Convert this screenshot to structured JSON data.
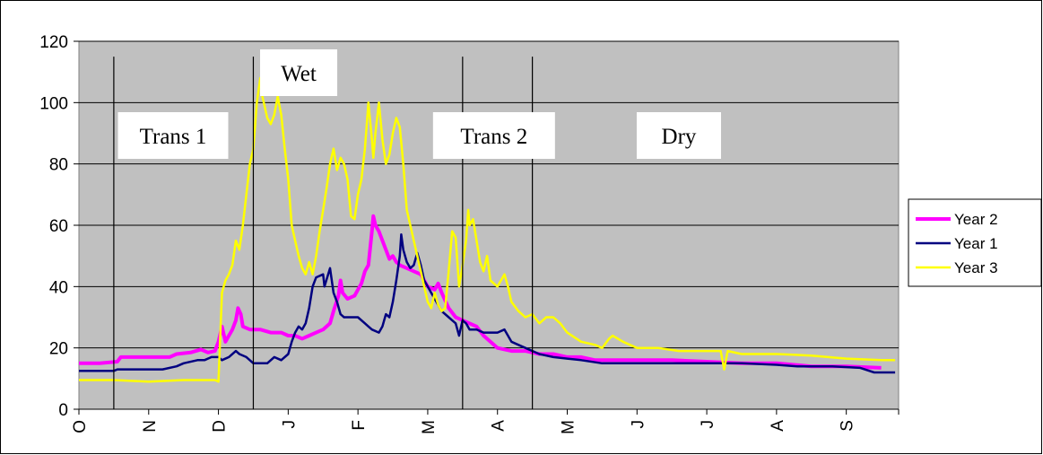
{
  "chart_data": {
    "type": "line",
    "title": "",
    "xlabel": "",
    "ylabel": "",
    "ylim": [
      0,
      120
    ],
    "yticks": [
      0,
      20,
      40,
      60,
      80,
      100,
      120
    ],
    "months": [
      "O",
      "N",
      "D",
      "J",
      "F",
      "M",
      "A",
      "M",
      "J",
      "J",
      "A",
      "S"
    ],
    "grid": "horizontal",
    "plot_background": "#c0c0c0",
    "legend_position": "right",
    "period_markers": [
      0.5,
      2.5,
      5.5,
      6.5
    ],
    "periods": [
      {
        "label": "Trans 1",
        "x": 1.35
      },
      {
        "label": "Wet",
        "x": 3.15
      },
      {
        "label": "Trans 2",
        "x": 5.95
      },
      {
        "label": "Dry",
        "x": 8.6
      }
    ],
    "series": [
      {
        "name": "Year 2",
        "color": "#ff00ff",
        "width": 4,
        "points": [
          [
            0,
            15
          ],
          [
            0.3,
            15
          ],
          [
            0.55,
            15.5
          ],
          [
            0.6,
            17
          ],
          [
            1.0,
            17
          ],
          [
            1.3,
            17
          ],
          [
            1.4,
            18
          ],
          [
            1.6,
            18.5
          ],
          [
            1.75,
            19.5
          ],
          [
            1.85,
            18.5
          ],
          [
            1.95,
            19
          ],
          [
            2.0,
            22
          ],
          [
            2.05,
            27
          ],
          [
            2.1,
            22
          ],
          [
            2.15,
            24
          ],
          [
            2.2,
            26
          ],
          [
            2.25,
            29
          ],
          [
            2.28,
            33
          ],
          [
            2.32,
            31
          ],
          [
            2.35,
            27
          ],
          [
            2.45,
            26
          ],
          [
            2.6,
            26
          ],
          [
            2.75,
            25
          ],
          [
            2.9,
            25
          ],
          [
            3.0,
            24
          ],
          [
            3.1,
            24
          ],
          [
            3.2,
            23
          ],
          [
            3.3,
            24
          ],
          [
            3.4,
            25
          ],
          [
            3.5,
            26
          ],
          [
            3.6,
            28
          ],
          [
            3.65,
            32
          ],
          [
            3.72,
            37
          ],
          [
            3.75,
            42
          ],
          [
            3.78,
            38
          ],
          [
            3.85,
            36
          ],
          [
            3.95,
            37
          ],
          [
            4.0,
            39
          ],
          [
            4.05,
            41
          ],
          [
            4.1,
            45
          ],
          [
            4.15,
            47
          ],
          [
            4.2,
            58
          ],
          [
            4.22,
            63
          ],
          [
            4.25,
            60
          ],
          [
            4.3,
            58
          ],
          [
            4.35,
            55
          ],
          [
            4.4,
            52
          ],
          [
            4.45,
            49
          ],
          [
            4.5,
            50
          ],
          [
            4.55,
            48
          ],
          [
            4.6,
            47
          ],
          [
            4.7,
            46
          ],
          [
            4.8,
            45
          ],
          [
            4.9,
            44
          ],
          [
            5.0,
            40
          ],
          [
            5.1,
            39
          ],
          [
            5.15,
            41
          ],
          [
            5.2,
            38
          ],
          [
            5.3,
            33
          ],
          [
            5.4,
            30
          ],
          [
            5.5,
            29
          ],
          [
            5.7,
            27
          ],
          [
            5.8,
            24
          ],
          [
            6.0,
            20
          ],
          [
            6.2,
            19
          ],
          [
            6.4,
            19
          ],
          [
            6.6,
            18
          ],
          [
            6.8,
            18
          ],
          [
            7.0,
            17
          ],
          [
            7.2,
            17
          ],
          [
            7.4,
            16
          ],
          [
            8.0,
            16
          ],
          [
            8.5,
            16
          ],
          [
            9.0,
            15.5
          ],
          [
            9.5,
            15
          ],
          [
            10.0,
            15
          ],
          [
            10.5,
            14
          ],
          [
            11.0,
            14
          ],
          [
            11.5,
            13.5
          ]
        ]
      },
      {
        "name": "Year 1",
        "color": "#000080",
        "width": 2.5,
        "points": [
          [
            0,
            12.5
          ],
          [
            0.5,
            12.5
          ],
          [
            0.55,
            13
          ],
          [
            1.0,
            13
          ],
          [
            1.2,
            13
          ],
          [
            1.4,
            14
          ],
          [
            1.5,
            15
          ],
          [
            1.7,
            16
          ],
          [
            1.8,
            16
          ],
          [
            1.9,
            17
          ],
          [
            2.0,
            17
          ],
          [
            2.05,
            16
          ],
          [
            2.15,
            17
          ],
          [
            2.25,
            19
          ],
          [
            2.3,
            18
          ],
          [
            2.4,
            17
          ],
          [
            2.5,
            15
          ],
          [
            2.6,
            15
          ],
          [
            2.7,
            15
          ],
          [
            2.8,
            17
          ],
          [
            2.9,
            16
          ],
          [
            3.0,
            18
          ],
          [
            3.05,
            22
          ],
          [
            3.1,
            25
          ],
          [
            3.15,
            27
          ],
          [
            3.2,
            26
          ],
          [
            3.25,
            28
          ],
          [
            3.3,
            33
          ],
          [
            3.35,
            40
          ],
          [
            3.4,
            43
          ],
          [
            3.5,
            44
          ],
          [
            3.52,
            40
          ],
          [
            3.6,
            46
          ],
          [
            3.65,
            38
          ],
          [
            3.7,
            35
          ],
          [
            3.75,
            31
          ],
          [
            3.8,
            30
          ],
          [
            3.9,
            30
          ],
          [
            4.0,
            30
          ],
          [
            4.1,
            28
          ],
          [
            4.15,
            27
          ],
          [
            4.2,
            26
          ],
          [
            4.3,
            25
          ],
          [
            4.35,
            27
          ],
          [
            4.4,
            31
          ],
          [
            4.45,
            30
          ],
          [
            4.5,
            35
          ],
          [
            4.55,
            42
          ],
          [
            4.6,
            50
          ],
          [
            4.62,
            57
          ],
          [
            4.65,
            52
          ],
          [
            4.7,
            48
          ],
          [
            4.75,
            46
          ],
          [
            4.8,
            47
          ],
          [
            4.85,
            51
          ],
          [
            4.9,
            47
          ],
          [
            4.95,
            42
          ],
          [
            5.0,
            40
          ],
          [
            5.05,
            38
          ],
          [
            5.1,
            36
          ],
          [
            5.2,
            32
          ],
          [
            5.3,
            30
          ],
          [
            5.35,
            29
          ],
          [
            5.4,
            28
          ],
          [
            5.45,
            24
          ],
          [
            5.5,
            29
          ],
          [
            5.55,
            28
          ],
          [
            5.6,
            26
          ],
          [
            5.7,
            26
          ],
          [
            5.8,
            25
          ],
          [
            6.0,
            25
          ],
          [
            6.1,
            26
          ],
          [
            6.2,
            22
          ],
          [
            6.4,
            20
          ],
          [
            6.6,
            18
          ],
          [
            6.8,
            17
          ],
          [
            7.0,
            16.5
          ],
          [
            7.2,
            16
          ],
          [
            7.5,
            15
          ],
          [
            8.0,
            15
          ],
          [
            8.5,
            15
          ],
          [
            9.0,
            15
          ],
          [
            9.5,
            15
          ],
          [
            10.0,
            14.5
          ],
          [
            10.3,
            14
          ],
          [
            10.8,
            14
          ],
          [
            11.2,
            13.5
          ],
          [
            11.4,
            12
          ],
          [
            11.7,
            12
          ]
        ]
      },
      {
        "name": "Year 3",
        "color": "#ffff00",
        "width": 2.5,
        "points": [
          [
            0,
            9.5
          ],
          [
            0.5,
            9.5
          ],
          [
            1.0,
            9
          ],
          [
            1.5,
            9.5
          ],
          [
            1.95,
            9.5
          ],
          [
            2.0,
            9
          ],
          [
            2.05,
            38
          ],
          [
            2.1,
            42
          ],
          [
            2.15,
            44
          ],
          [
            2.2,
            47
          ],
          [
            2.25,
            55
          ],
          [
            2.3,
            52
          ],
          [
            2.35,
            60
          ],
          [
            2.4,
            70
          ],
          [
            2.45,
            80
          ],
          [
            2.5,
            85
          ],
          [
            2.55,
            100
          ],
          [
            2.6,
            108
          ],
          [
            2.63,
            102
          ],
          [
            2.7,
            95
          ],
          [
            2.75,
            93
          ],
          [
            2.8,
            96
          ],
          [
            2.85,
            102
          ],
          [
            2.9,
            96
          ],
          [
            2.95,
            85
          ],
          [
            3.0,
            75
          ],
          [
            3.05,
            60
          ],
          [
            3.1,
            55
          ],
          [
            3.15,
            50
          ],
          [
            3.2,
            46
          ],
          [
            3.25,
            44
          ],
          [
            3.3,
            48
          ],
          [
            3.35,
            44
          ],
          [
            3.4,
            50
          ],
          [
            3.45,
            58
          ],
          [
            3.5,
            65
          ],
          [
            3.55,
            72
          ],
          [
            3.6,
            80
          ],
          [
            3.65,
            85
          ],
          [
            3.7,
            78
          ],
          [
            3.75,
            82
          ],
          [
            3.8,
            80
          ],
          [
            3.85,
            75
          ],
          [
            3.9,
            63
          ],
          [
            3.95,
            62
          ],
          [
            4.0,
            70
          ],
          [
            4.05,
            75
          ],
          [
            4.1,
            85
          ],
          [
            4.15,
            100
          ],
          [
            4.2,
            88
          ],
          [
            4.22,
            82
          ],
          [
            4.25,
            90
          ],
          [
            4.3,
            100
          ],
          [
            4.35,
            88
          ],
          [
            4.4,
            80
          ],
          [
            4.45,
            83
          ],
          [
            4.5,
            90
          ],
          [
            4.55,
            95
          ],
          [
            4.6,
            92
          ],
          [
            4.65,
            80
          ],
          [
            4.7,
            65
          ],
          [
            4.75,
            60
          ],
          [
            4.8,
            55
          ],
          [
            4.85,
            50
          ],
          [
            4.9,
            45
          ],
          [
            4.95,
            40
          ],
          [
            5.0,
            35
          ],
          [
            5.05,
            33
          ],
          [
            5.1,
            38
          ],
          [
            5.15,
            34
          ],
          [
            5.2,
            32
          ],
          [
            5.25,
            33
          ],
          [
            5.3,
            45
          ],
          [
            5.35,
            58
          ],
          [
            5.4,
            56
          ],
          [
            5.45,
            40
          ],
          [
            5.5,
            47
          ],
          [
            5.55,
            55
          ],
          [
            5.58,
            65
          ],
          [
            5.6,
            60
          ],
          [
            5.65,
            62
          ],
          [
            5.7,
            55
          ],
          [
            5.75,
            48
          ],
          [
            5.8,
            45
          ],
          [
            5.85,
            50
          ],
          [
            5.9,
            42
          ],
          [
            6.0,
            40
          ],
          [
            6.1,
            44
          ],
          [
            6.15,
            40
          ],
          [
            6.2,
            35
          ],
          [
            6.3,
            32
          ],
          [
            6.4,
            30
          ],
          [
            6.5,
            31
          ],
          [
            6.6,
            28
          ],
          [
            6.7,
            30
          ],
          [
            6.8,
            30
          ],
          [
            6.9,
            28
          ],
          [
            7.0,
            25
          ],
          [
            7.2,
            22
          ],
          [
            7.4,
            21
          ],
          [
            7.5,
            20
          ],
          [
            7.6,
            23
          ],
          [
            7.65,
            24
          ],
          [
            7.8,
            22
          ],
          [
            8.0,
            20
          ],
          [
            8.3,
            20
          ],
          [
            8.6,
            19
          ],
          [
            9.0,
            19
          ],
          [
            9.2,
            19
          ],
          [
            9.25,
            13
          ],
          [
            9.3,
            19
          ],
          [
            9.5,
            18
          ],
          [
            10.0,
            18
          ],
          [
            10.5,
            17.5
          ],
          [
            11.0,
            16.5
          ],
          [
            11.5,
            16
          ],
          [
            11.7,
            16
          ]
        ]
      }
    ]
  }
}
